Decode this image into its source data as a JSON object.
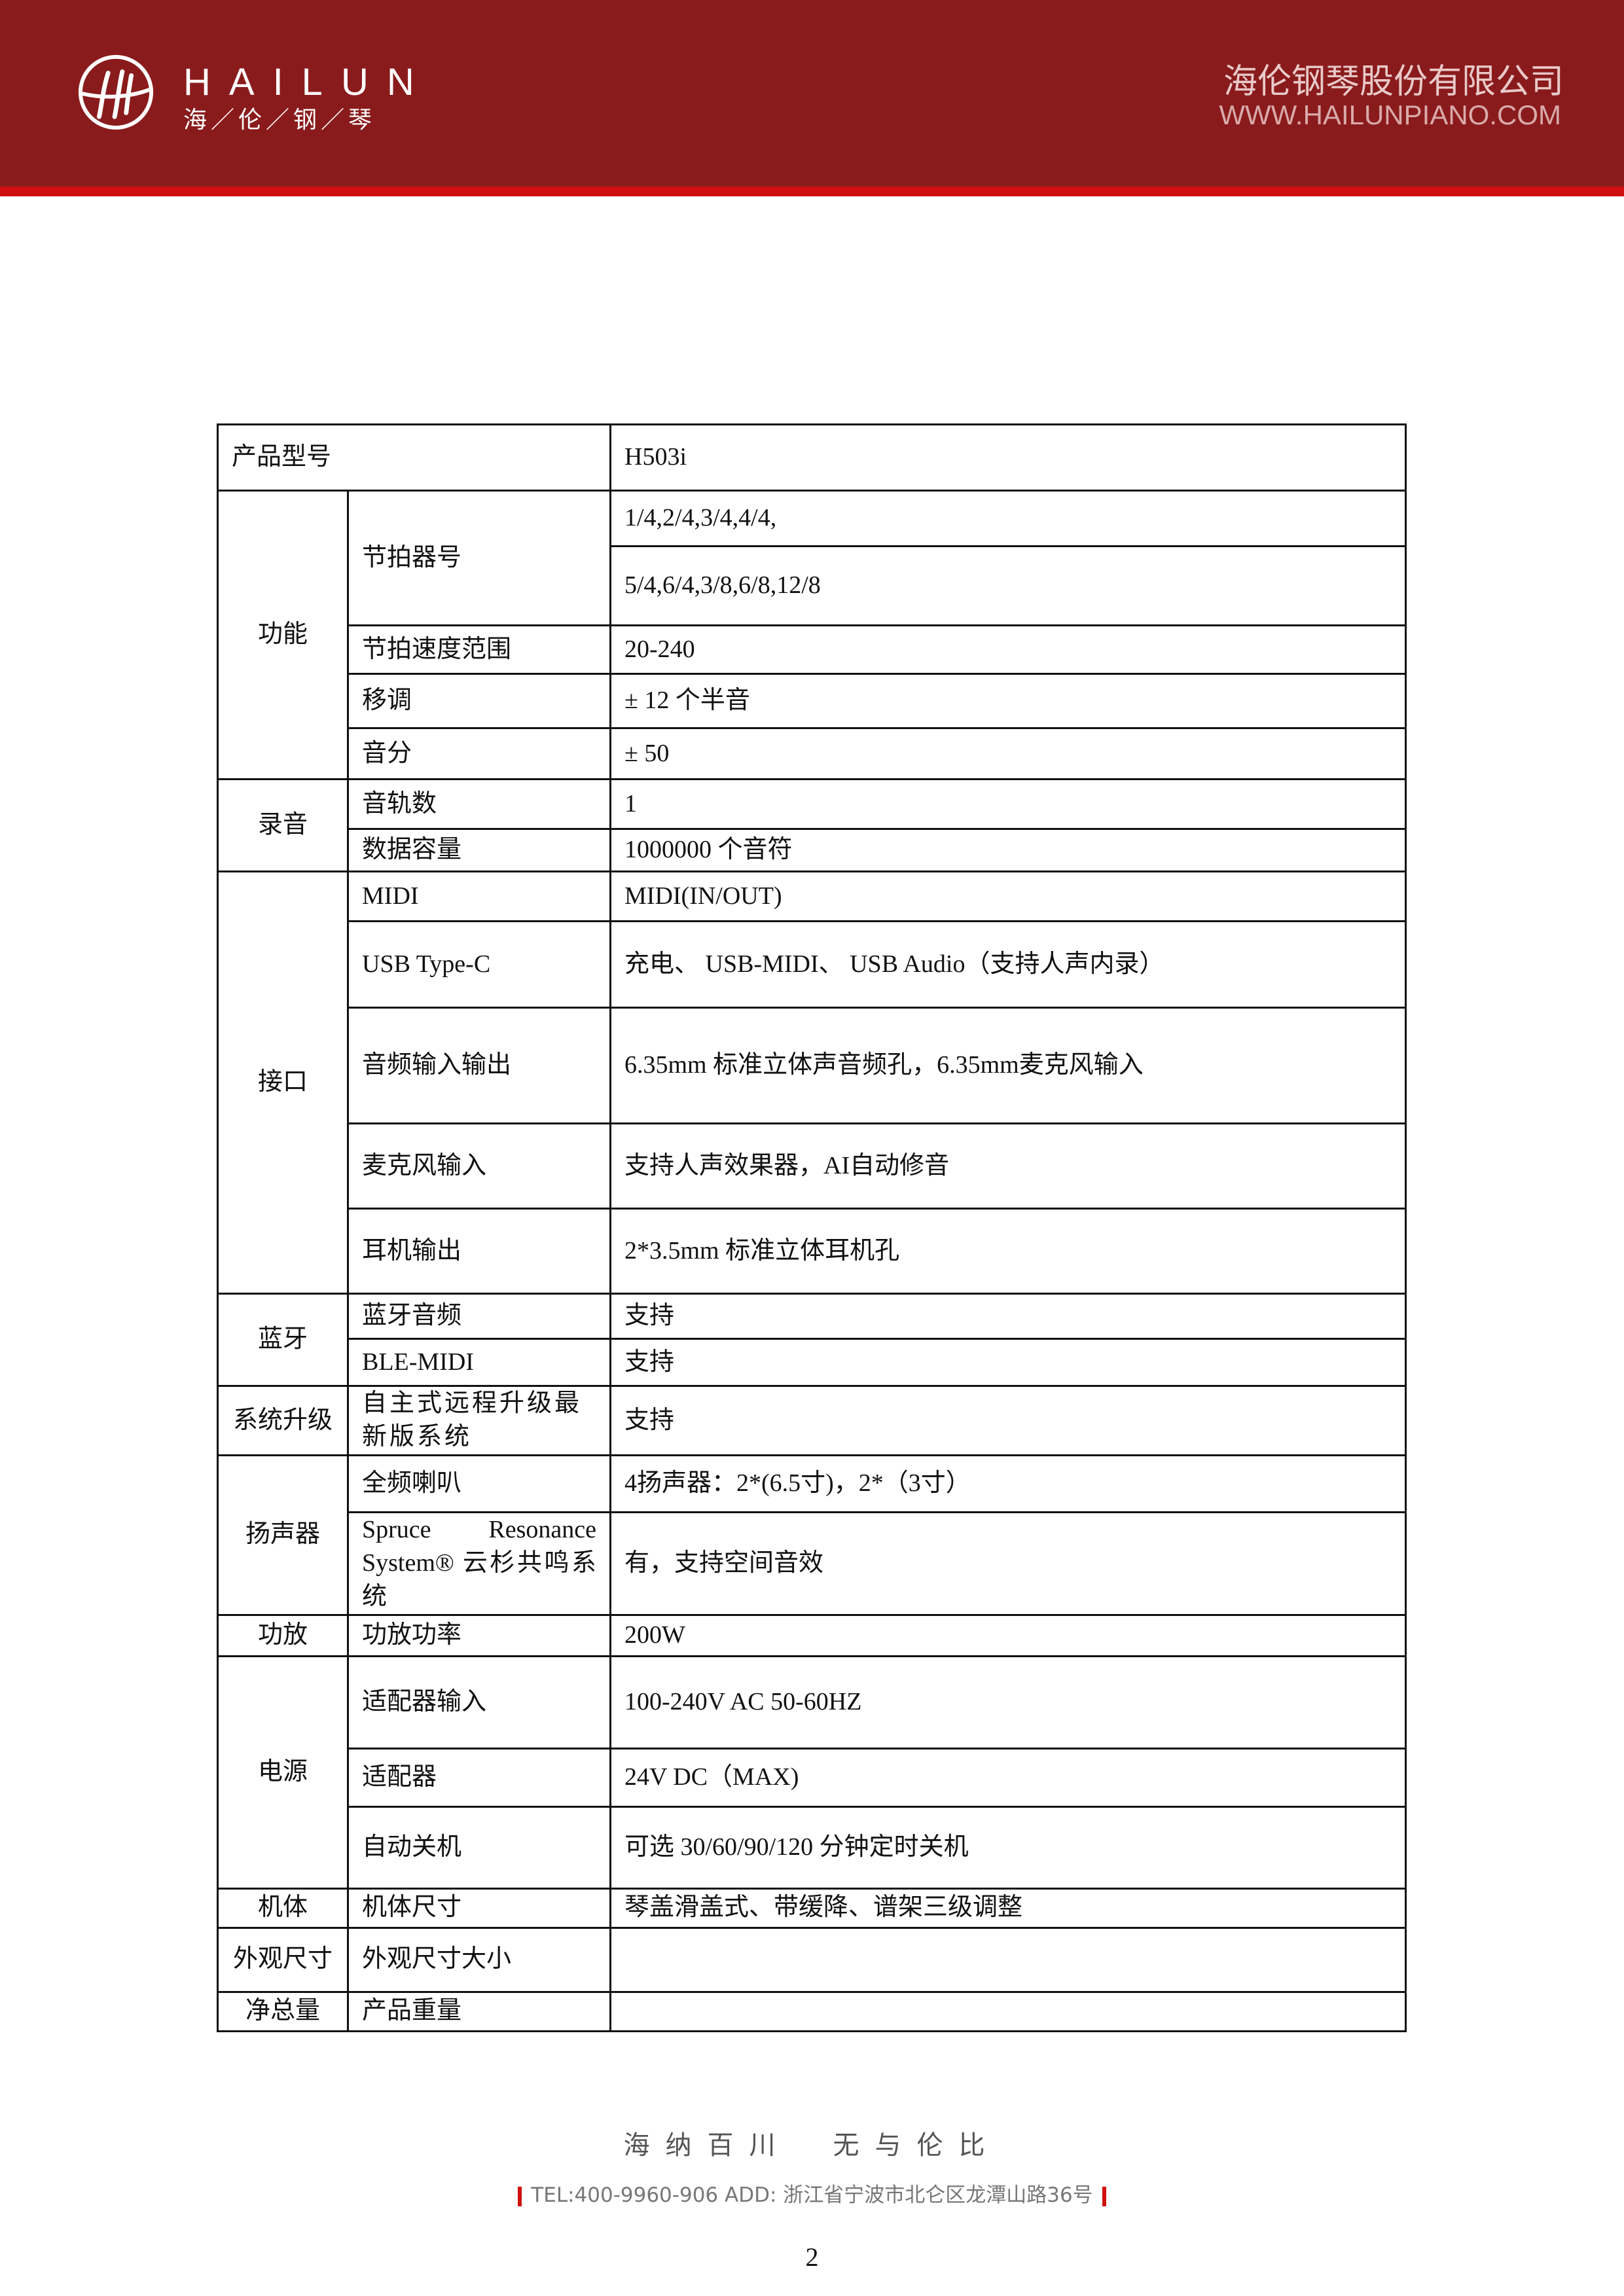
{
  "header": {
    "brand": "HAILUN",
    "brand_sub": "海／伦／钢／琴",
    "company": "海伦钢琴股份有限公司",
    "url": "WWW.HAILUNPIANO.COM",
    "colors": {
      "header": "#8a1b1c",
      "stripe": "#d0100f"
    }
  },
  "spec_table": {
    "top_row": {
      "label": "产品型号",
      "value": "H503i"
    },
    "groups": [
      {
        "label": "功能",
        "items": [
          {
            "label": "节拍器号",
            "values": [
              "1/4,2/4,3/4,4/4,",
              "5/4,6/4,3/8,6/8,12/8"
            ]
          },
          {
            "label": "节拍速度范围",
            "values": [
              "20-240"
            ]
          },
          {
            "label": "移调",
            "values": [
              "±  12  个半音"
            ]
          },
          {
            "label": "音分",
            "values": [
              "± 50"
            ]
          }
        ]
      },
      {
        "label": "录音",
        "items": [
          {
            "label": "音轨数",
            "values": [
              "1"
            ]
          },
          {
            "label": "数据容量",
            "values": [
              "1000000  个音符"
            ]
          }
        ]
      },
      {
        "label": "接口",
        "items": [
          {
            "label": "MIDI",
            "values": [
              "MIDI(IN/OUT)"
            ]
          },
          {
            "label": "USB Type-C",
            "values": [
              "充电、 USB-MIDI、 USB Audio（支持人声内录）"
            ]
          },
          {
            "label": "音频输入输出",
            "values": [
              "6.35mm  标准立体声音频孔，6.35mm麦克风输入"
            ]
          },
          {
            "label": "麦克风输入",
            "values": [
              "支持人声效果器，AI自动修音"
            ]
          },
          {
            "label": "耳机输出",
            "values": [
              "2*3.5mm  标准立体耳机孔"
            ]
          }
        ]
      },
      {
        "label": "蓝牙",
        "items": [
          {
            "label": "蓝牙音频",
            "values": [
              "支持"
            ]
          },
          {
            "label": "BLE-MIDI",
            "values": [
              "支持"
            ]
          }
        ]
      },
      {
        "label": "系统升级",
        "items": [
          {
            "label": "自主式远程升级最新版系统",
            "values": [
              "支持"
            ]
          }
        ]
      },
      {
        "label": "扬声器",
        "items": [
          {
            "label": "全频喇叭",
            "values": [
              "4扬声器：2*(6.5寸)，2*（3寸）"
            ]
          },
          {
            "label": "Spruce Resonance System® 云杉共鸣系统",
            "values": [
              "有，支持空间音效"
            ]
          }
        ]
      },
      {
        "label": "功放",
        "items": [
          {
            "label": "功放功率",
            "values": [
              "200W"
            ]
          }
        ]
      },
      {
        "label": "电源",
        "items": [
          {
            "label": "适配器输入",
            "values": [
              "100-240V AC 50-60HZ"
            ]
          },
          {
            "label": "适配器",
            "values": [
              "24V DC（MAX)"
            ]
          },
          {
            "label": "自动关机",
            "values": [
              "可选  30/60/90/120  分钟定时关机"
            ]
          }
        ]
      },
      {
        "label": "机体",
        "items": [
          {
            "label": "机体尺寸",
            "values": [
              "琴盖滑盖式、带缓降、谱架三级调整"
            ]
          }
        ]
      },
      {
        "label": "外观尺寸",
        "items": [
          {
            "label": "外观尺寸大小",
            "values": [
              ""
            ]
          }
        ]
      },
      {
        "label": "净总量",
        "items": [
          {
            "label": "产品重量",
            "values": [
              ""
            ]
          }
        ]
      }
    ]
  },
  "footer": {
    "slogan": "海纳百川　无与伦比",
    "contact": "TEL:400-9960-906  ADD: 浙江省宁波市北仑区龙潭山路36号",
    "page_number": "2"
  }
}
